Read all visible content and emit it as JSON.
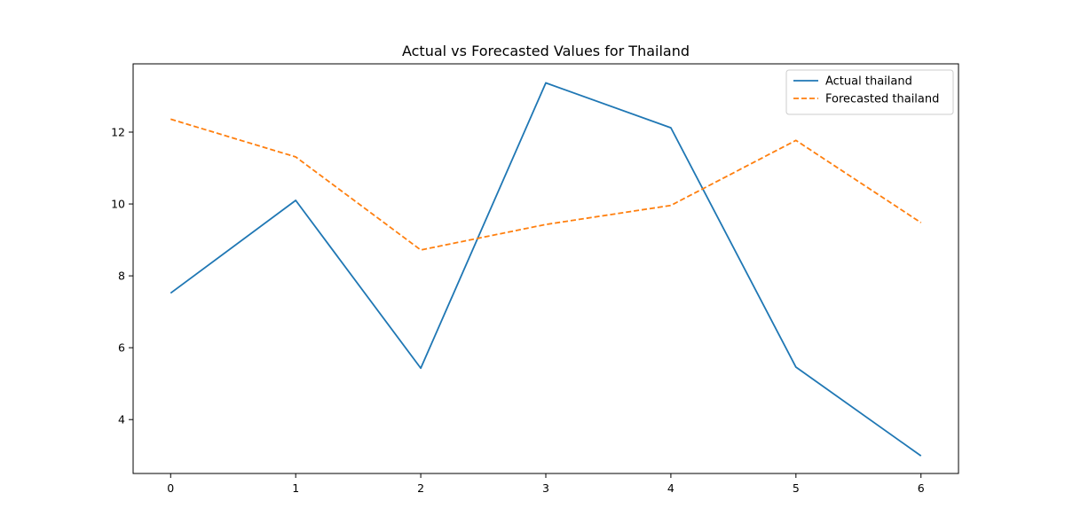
{
  "chart_data": {
    "type": "line",
    "title": "Actual vs Forecasted Values for Thailand",
    "xlabel": "",
    "ylabel": "",
    "x": [
      0,
      1,
      2,
      3,
      4,
      5,
      6
    ],
    "xlim": [
      -0.3,
      6.3
    ],
    "ylim": [
      2.5,
      13.9
    ],
    "xticks": [
      0,
      1,
      2,
      3,
      4,
      5,
      6
    ],
    "yticks": [
      4,
      6,
      8,
      10,
      12
    ],
    "grid": false,
    "legend_position": "top-right",
    "series": [
      {
        "name": "Actual thailand",
        "values": [
          7.52,
          10.1,
          5.43,
          13.37,
          12.12,
          5.46,
          2.99
        ],
        "color": "#1f77b4",
        "style": "solid"
      },
      {
        "name": "Forecasted thailand",
        "values": [
          12.36,
          11.31,
          8.72,
          9.43,
          9.96,
          11.77,
          9.48
        ],
        "color": "#ff7f0e",
        "style": "dashed"
      }
    ]
  }
}
